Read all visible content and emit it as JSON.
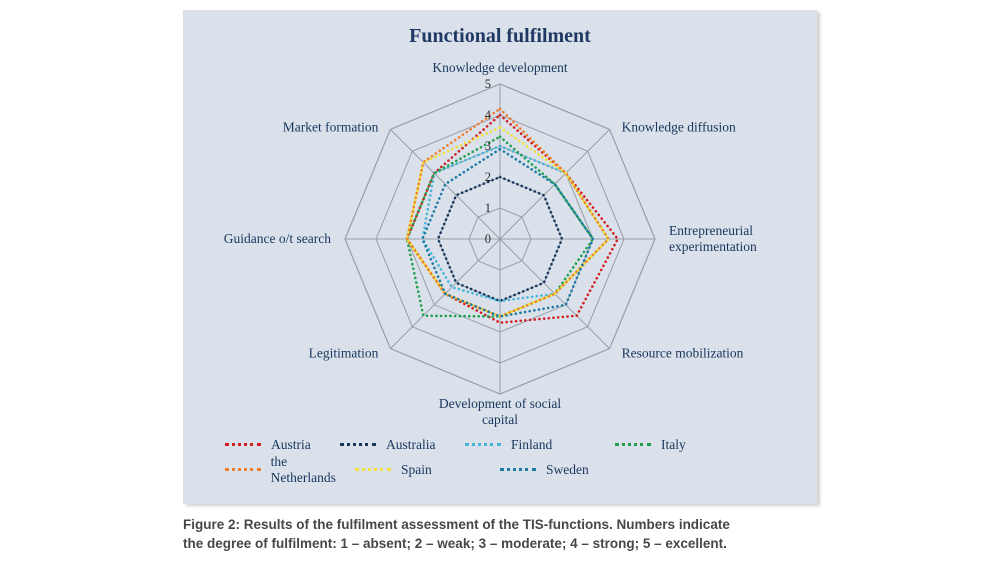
{
  "chart_data": {
    "type": "radar",
    "title": "Functional fulfilment",
    "categories": [
      "Knowledge development",
      "Knowledge diffusion",
      "Entrepreneurial experimentation",
      "Resource mobilization",
      "Development of social capital",
      "Legitimation",
      "Guidance o/t search",
      "Market formation"
    ],
    "category_lines": [
      [
        "Knowledge development"
      ],
      [
        "Knowledge diffusion"
      ],
      [
        "Entrepreneurial",
        "experimentation"
      ],
      [
        "Resource mobilization"
      ],
      [
        "Development of social",
        "capital"
      ],
      [
        "Legitimation"
      ],
      [
        "Guidance o/t search"
      ],
      [
        "Market formation"
      ]
    ],
    "rmax": 5,
    "ticks": [
      "0",
      "1",
      "2",
      "3",
      "4",
      "5"
    ],
    "grid": true,
    "legend_position": "bottom",
    "series": [
      {
        "name": "Austria",
        "color": "#d31f1f",
        "values": [
          4.0,
          3.0,
          3.8,
          3.5,
          2.7,
          2.5,
          3.0,
          3.0
        ]
      },
      {
        "name": "Australia",
        "color": "#17375e",
        "values": [
          2.0,
          2.0,
          2.0,
          2.0,
          2.0,
          2.0,
          2.0,
          2.0
        ]
      },
      {
        "name": "Finland",
        "color": "#45b6d8",
        "values": [
          3.0,
          3.0,
          3.5,
          2.5,
          2.0,
          2.2,
          2.5,
          3.0
        ]
      },
      {
        "name": "Italy",
        "color": "#1fa04d",
        "values": [
          3.3,
          2.5,
          3.0,
          2.5,
          2.5,
          3.5,
          3.0,
          3.0
        ]
      },
      {
        "name": "the Netherlands",
        "color": "#ed7d31",
        "values": [
          4.2,
          3.0,
          3.5,
          2.5,
          2.5,
          2.5,
          3.0,
          3.5
        ]
      },
      {
        "name": "Spain",
        "color": "#f2e13a",
        "values": [
          3.6,
          3.0,
          3.5,
          2.5,
          2.5,
          2.5,
          3.0,
          3.5
        ]
      },
      {
        "name": "Sweden",
        "color": "#1b7ba3",
        "values": [
          2.9,
          2.5,
          3.0,
          3.0,
          2.5,
          2.5,
          2.5,
          2.5
        ]
      }
    ],
    "legend_rows": [
      [
        "Austria",
        "Australia",
        "Finland",
        "Italy"
      ],
      [
        "the Netherlands",
        "Spain",
        "Sweden"
      ]
    ]
  },
  "caption": {
    "line1": "Figure 2: Results of the fulfilment assessment of the TIS-functions. Numbers indicate",
    "line2": "the degree of fulfilment: 1 – absent; 2 – weak; 3 – moderate; 4 – strong; 5 – excellent."
  }
}
